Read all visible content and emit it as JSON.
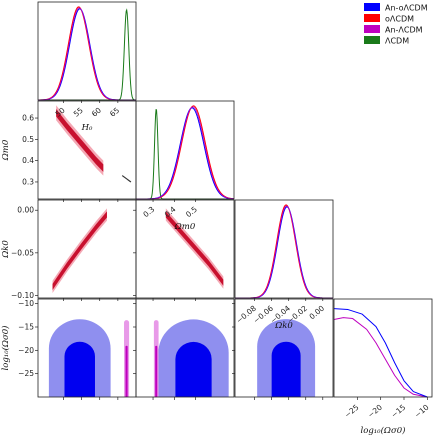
{
  "chart_data": {
    "type": "corner",
    "title": "",
    "legend": {
      "placement": "top-right",
      "entries": [
        {
          "label": "An-oΛCDM",
          "color": "#0000ff"
        },
        {
          "label": "oΛCDM",
          "color": "#ff0000"
        },
        {
          "label": "An-ΛCDM",
          "color": "#bf00bf"
        },
        {
          "label": "ΛCDM",
          "color": "#1a7a1a"
        }
      ]
    },
    "parameters": [
      {
        "label": "H₀",
        "range": [
          43,
          70
        ],
        "ticks": [
          50,
          55,
          60,
          65
        ],
        "tick_labels": [
          "50",
          "55",
          "60",
          "65"
        ]
      },
      {
        "label": "Ωm0",
        "range": [
          0.22,
          0.68
        ],
        "ticks": [
          0.3,
          0.4,
          0.5
        ],
        "tick_labels": [
          "0.3",
          "0.4",
          "0.5"
        ]
      },
      {
        "label": "Ωk0",
        "range": [
          -0.103,
          0.012
        ],
        "ticks": [
          -0.08,
          -0.06,
          -0.04,
          -0.02,
          0.0
        ],
        "tick_labels": [
          "−0.08",
          "−0.06",
          "−0.04",
          "−0.02",
          "0.00"
        ]
      },
      {
        "label": "log₁₀(Ωσ0)",
        "range": [
          -30,
          -9
        ],
        "ticks": [
          -25,
          -20,
          -15,
          -10
        ],
        "tick_labels": [
          "−25",
          "−20",
          "−15",
          "−10"
        ]
      }
    ],
    "y_labels": [
      {
        "row": 1,
        "label": "Ωm0",
        "ticks": [
          0.3,
          0.4,
          0.5,
          0.6
        ],
        "tick_labels": [
          "0.3",
          "0.4",
          "0.5",
          "0.6"
        ]
      },
      {
        "row": 2,
        "label": "Ωk0",
        "ticks": [
          -0.1,
          -0.05,
          0.0
        ],
        "tick_labels": [
          "−0.10",
          "−0.05",
          "0.00"
        ]
      },
      {
        "row": 3,
        "label": "log₁₀(Ωσ0)",
        "ticks": [
          -25,
          -20,
          -15,
          -10
        ],
        "tick_labels": [
          "−25",
          "−20",
          "−15",
          "−10"
        ]
      }
    ],
    "marginals": {
      "H0": {
        "An-oΛCDM": {
          "mean": 54.5,
          "sigma": 2.8
        },
        "oΛCDM": {
          "mean": 54.2,
          "sigma": 2.8
        },
        "ΛCDM": {
          "mean": 67.4,
          "sigma": 0.6
        }
      },
      "Om0": {
        "An-oΛCDM": {
          "mean": 0.483,
          "sigma": 0.055
        },
        "oΛCDM": {
          "mean": 0.49,
          "sigma": 0.055
        },
        "ΛCDM": {
          "mean": 0.315,
          "sigma": 0.008
        }
      },
      "Ok0": {
        "An-oΛCDM": {
          "mean": -0.042,
          "sigma": 0.011
        },
        "oΛCDM": {
          "mean": -0.043,
          "sigma": 0.011
        }
      },
      "logOs0": {
        "An-oΛCDM": [
          [
            -30,
            0.98
          ],
          [
            -27,
            0.97
          ],
          [
            -24,
            0.92
          ],
          [
            -21,
            0.78
          ],
          [
            -19,
            0.6
          ],
          [
            -17,
            0.38
          ],
          [
            -15,
            0.18
          ],
          [
            -13,
            0.06
          ],
          [
            -10,
            0.0
          ]
        ],
        "oΛCDM": [
          [
            -30,
            0.86
          ],
          [
            -28,
            0.88
          ],
          [
            -26,
            0.87
          ],
          [
            -23,
            0.75
          ],
          [
            -21,
            0.6
          ],
          [
            -19,
            0.42
          ],
          [
            -17,
            0.24
          ],
          [
            -15,
            0.1
          ],
          [
            -13,
            0.03
          ],
          [
            -10,
            0.0
          ]
        ]
      }
    },
    "contours_2d": {
      "H0_Om0": {
        "points": [
          [
            48,
            0.625
          ],
          [
            51,
            0.56
          ],
          [
            55,
            0.48
          ],
          [
            59,
            0.4
          ],
          [
            61,
            0.365
          ]
        ],
        "width": 0.022,
        "lcdm": {
          "center": [
            67.4,
            0.315
          ],
          "length": 2.5
        }
      },
      "H0_Ok0": {
        "points": [
          [
            47,
            -0.09
          ],
          [
            51,
            -0.065
          ],
          [
            55,
            -0.042
          ],
          [
            59,
            -0.02
          ],
          [
            62,
            -0.005
          ]
        ],
        "width": 0.004
      },
      "Om0_Ok0": {
        "points": [
          [
            0.36,
            -0.005
          ],
          [
            0.43,
            -0.025
          ],
          [
            0.49,
            -0.042
          ],
          [
            0.56,
            -0.062
          ],
          [
            0.63,
            -0.085
          ]
        ],
        "width": 0.004
      },
      "logOs0_regions": {
        "An_oLCDM": {
          "inner_top": -18,
          "outer_top": -13
        },
        "An_LCDM_H0": {
          "center": 67.4,
          "inner_half": 0.3,
          "outer_half": 0.7
        },
        "An_LCDM_Om0": {
          "center": 0.315,
          "inner_half": 0.005,
          "outer_half": 0.011
        }
      }
    }
  }
}
